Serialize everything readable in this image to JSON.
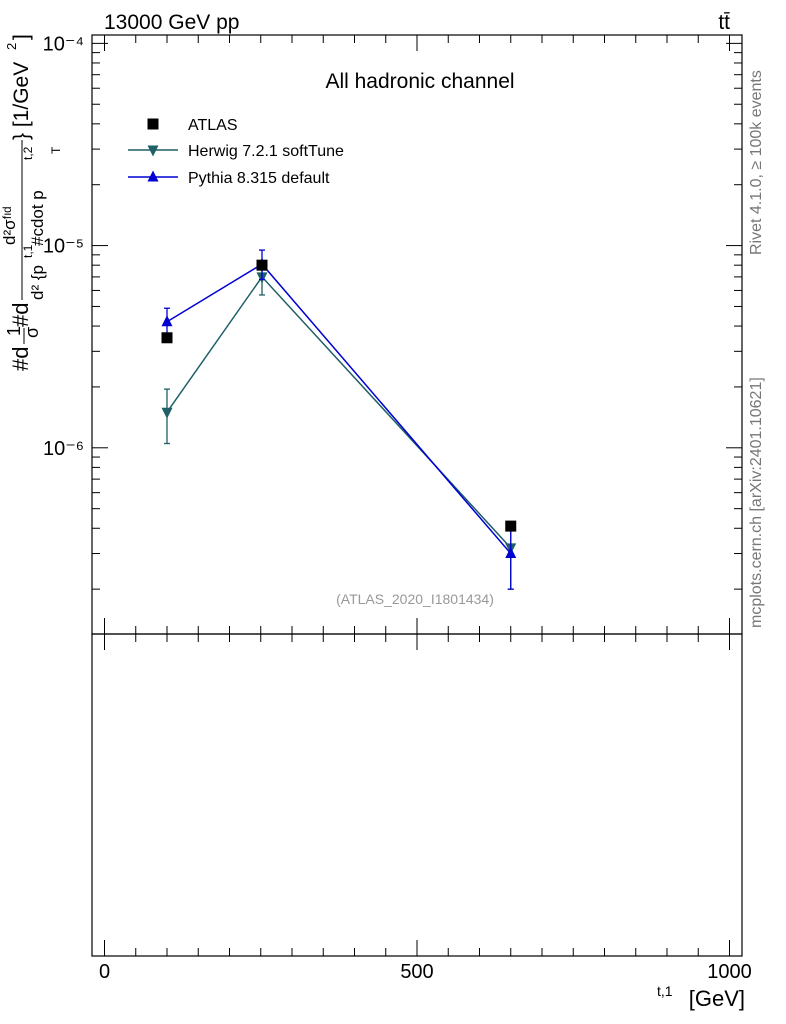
{
  "header": {
    "energy_label": "13000 GeV pp",
    "process_label": "tt̄"
  },
  "side_labels": {
    "rivet": "Rivet 4.1.0, ≥ 100k events",
    "mcplots": "mcplots.cern.ch [arXiv:2401.10621]"
  },
  "ylabel": {
    "prefix": "#d",
    "frac1_num": "1",
    "frac1_den": "σ",
    "mid": "#d",
    "frac2_num": "d²σᶠᶦᵈ",
    "frac2_den": "d² {p",
    "frac2_den_sup": "t,1",
    "frac2_den_rest": " #cdot p",
    "frac2_den_sub": "T",
    "frac2_den_sup2": "t,2",
    "suffix": "} [1/GeV",
    "suffix_sup": "2",
    "suffix_end": "]"
  },
  "xlabel": {
    "sup": "t,1",
    "main": "[GeV]"
  },
  "chart_data": {
    "type": "scatter",
    "title": "All hadronic channel",
    "watermark": "(ATLAS_2020_I1801434)",
    "y_scale": "log",
    "ylim": [
      1.2e-07,
      0.00011
    ],
    "xlim": [
      -20,
      1020
    ],
    "y_ticks": [
      {
        "value": 0.0001,
        "label": "10⁻⁴"
      },
      {
        "value": 1e-05,
        "label": "10⁻⁵"
      },
      {
        "value": 1e-06,
        "label": "10⁻⁶"
      }
    ],
    "x_ticks": [
      {
        "value": 0,
        "label": "0"
      },
      {
        "value": 500,
        "label": "500"
      },
      {
        "value": 1000,
        "label": "1000"
      }
    ],
    "legend_position": "top-left",
    "series": [
      {
        "name": "ATLAS",
        "marker": "square",
        "color": "#000000",
        "line": false,
        "x": [
          100,
          252,
          650
        ],
        "y": [
          3.5e-06,
          8e-06,
          4.1e-07
        ],
        "err_lo": [
          0,
          0,
          0
        ],
        "err_hi": [
          0,
          0,
          0
        ]
      },
      {
        "name": "Herwig 7.2.1 softTune",
        "marker": "triangle-down",
        "color": "#1f5f67",
        "line": true,
        "x": [
          100,
          252,
          650
        ],
        "y": [
          1.5e-06,
          7e-06,
          3.2e-07
        ],
        "err_lo": [
          1.05e-06,
          5.7e-06,
          2e-07
        ],
        "err_hi": [
          1.95e-06,
          8.3e-06,
          4.3e-07
        ]
      },
      {
        "name": "Pythia 8.315 default",
        "marker": "triangle-up",
        "color": "#0000d4",
        "line": true,
        "x": [
          100,
          252,
          650
        ],
        "y": [
          4.2e-06,
          8.1e-06,
          3e-07
        ],
        "err_lo": [
          3.5e-06,
          6.8e-06,
          2e-07
        ],
        "err_hi": [
          4.9e-06,
          9.5e-06,
          4.2e-07
        ]
      }
    ]
  }
}
